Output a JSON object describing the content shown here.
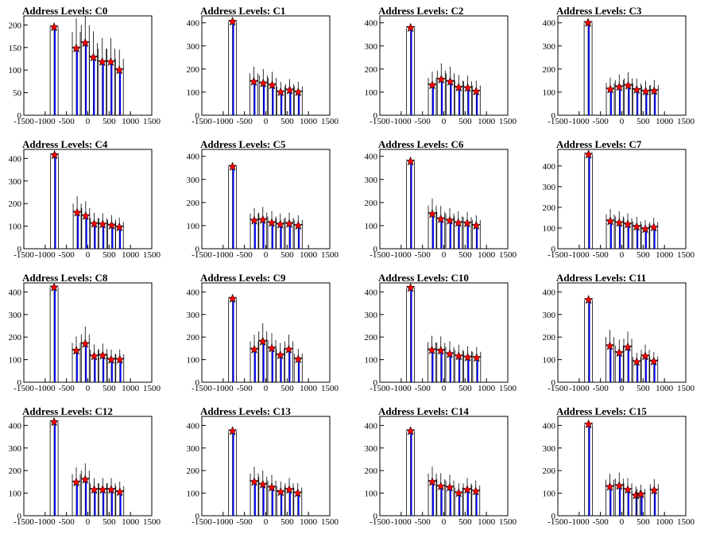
{
  "chart_data": [
    {
      "type": "histogram",
      "title": "Address Levels: C0",
      "xlim": [
        -1500,
        1500
      ],
      "ylim": [
        0,
        220
      ],
      "xticks": [
        -1500,
        -1000,
        -500,
        0,
        500,
        1000,
        1500
      ],
      "yticks": [
        0,
        50,
        100,
        150,
        200
      ],
      "peaks": [
        {
          "x": -790,
          "y": 195
        },
        {
          "x": -270,
          "y": 148
        },
        {
          "x": -60,
          "y": 160
        },
        {
          "x": 130,
          "y": 128
        },
        {
          "x": 340,
          "y": 118
        },
        {
          "x": 540,
          "y": 118
        },
        {
          "x": 740,
          "y": 100
        }
      ]
    },
    {
      "type": "histogram",
      "title": "Address Levels: C1",
      "xlim": [
        -1500,
        1500
      ],
      "ylim": [
        0,
        430
      ],
      "xticks": [
        -1500,
        -1000,
        -500,
        0,
        500,
        1000,
        1500
      ],
      "yticks": [
        0,
        100,
        200,
        300,
        400
      ],
      "peaks": [
        {
          "x": -780,
          "y": 405
        },
        {
          "x": -280,
          "y": 145
        },
        {
          "x": -60,
          "y": 138
        },
        {
          "x": 150,
          "y": 130
        },
        {
          "x": 350,
          "y": 100
        },
        {
          "x": 560,
          "y": 108
        },
        {
          "x": 760,
          "y": 100
        }
      ]
    },
    {
      "type": "histogram",
      "title": "Address Levels: C2",
      "xlim": [
        -1500,
        1500
      ],
      "ylim": [
        0,
        430
      ],
      "xticks": [
        -1500,
        -1000,
        -500,
        0,
        500,
        1000,
        1500
      ],
      "yticks": [
        0,
        100,
        200,
        300,
        400
      ],
      "peaks": [
        {
          "x": -780,
          "y": 378
        },
        {
          "x": -270,
          "y": 130
        },
        {
          "x": -60,
          "y": 155
        },
        {
          "x": 150,
          "y": 145
        },
        {
          "x": 350,
          "y": 120
        },
        {
          "x": 560,
          "y": 118
        },
        {
          "x": 760,
          "y": 103
        }
      ]
    },
    {
      "type": "histogram",
      "title": "Address Levels: C3",
      "xlim": [
        -1500,
        1500
      ],
      "ylim": [
        0,
        430
      ],
      "xticks": [
        -1500,
        -1000,
        -500,
        0,
        500,
        1000,
        1500
      ],
      "yticks": [
        0,
        100,
        200,
        300,
        400
      ],
      "peaks": [
        {
          "x": -790,
          "y": 400
        },
        {
          "x": -270,
          "y": 112
        },
        {
          "x": -60,
          "y": 122
        },
        {
          "x": 150,
          "y": 128
        },
        {
          "x": 350,
          "y": 110
        },
        {
          "x": 560,
          "y": 103
        },
        {
          "x": 760,
          "y": 105
        }
      ]
    },
    {
      "type": "histogram",
      "title": "Address Levels: C4",
      "xlim": [
        -1500,
        1500
      ],
      "ylim": [
        0,
        440
      ],
      "xticks": [
        -1500,
        -1000,
        -500,
        0,
        500,
        1000,
        1500
      ],
      "yticks": [
        0,
        100,
        200,
        300,
        400
      ],
      "peaks": [
        {
          "x": -780,
          "y": 415
        },
        {
          "x": -250,
          "y": 160
        },
        {
          "x": -50,
          "y": 145
        },
        {
          "x": 150,
          "y": 110
        },
        {
          "x": 350,
          "y": 108
        },
        {
          "x": 560,
          "y": 103
        },
        {
          "x": 740,
          "y": 95
        }
      ]
    },
    {
      "type": "histogram",
      "title": "Address Levels: C5",
      "xlim": [
        -1500,
        1500
      ],
      "ylim": [
        0,
        430
      ],
      "xticks": [
        -1500,
        -1000,
        -500,
        0,
        500,
        1000,
        1500
      ],
      "yticks": [
        0,
        100,
        200,
        300,
        400
      ],
      "peaks": [
        {
          "x": -780,
          "y": 355
        },
        {
          "x": -270,
          "y": 122
        },
        {
          "x": -70,
          "y": 125
        },
        {
          "x": 140,
          "y": 112
        },
        {
          "x": 340,
          "y": 105
        },
        {
          "x": 550,
          "y": 108
        },
        {
          "x": 760,
          "y": 100
        }
      ]
    },
    {
      "type": "histogram",
      "title": "Address Levels: C6",
      "xlim": [
        -1500,
        1500
      ],
      "ylim": [
        0,
        430
      ],
      "xticks": [
        -1500,
        -1000,
        -500,
        0,
        500,
        1000,
        1500
      ],
      "yticks": [
        0,
        100,
        200,
        300,
        400
      ],
      "peaks": [
        {
          "x": -780,
          "y": 378
        },
        {
          "x": -270,
          "y": 150
        },
        {
          "x": -70,
          "y": 128
        },
        {
          "x": 140,
          "y": 122
        },
        {
          "x": 340,
          "y": 112
        },
        {
          "x": 550,
          "y": 110
        },
        {
          "x": 760,
          "y": 100
        }
      ]
    },
    {
      "type": "histogram",
      "title": "Address Levels: C7",
      "xlim": [
        -1500,
        1500
      ],
      "ylim": [
        0,
        480
      ],
      "xticks": [
        -1500,
        -1000,
        -500,
        0,
        500,
        1000,
        1500
      ],
      "yticks": [
        0,
        100,
        200,
        300,
        400
      ],
      "peaks": [
        {
          "x": -780,
          "y": 455
        },
        {
          "x": -270,
          "y": 133
        },
        {
          "x": -60,
          "y": 125
        },
        {
          "x": 140,
          "y": 118
        },
        {
          "x": 350,
          "y": 106
        },
        {
          "x": 550,
          "y": 95
        },
        {
          "x": 750,
          "y": 103
        }
      ]
    },
    {
      "type": "histogram",
      "title": "Address Levels: C8",
      "xlim": [
        -1500,
        1500
      ],
      "ylim": [
        0,
        440
      ],
      "xticks": [
        -1500,
        -1000,
        -500,
        0,
        500,
        1000,
        1500
      ],
      "yticks": [
        0,
        100,
        200,
        300,
        400
      ],
      "peaks": [
        {
          "x": -790,
          "y": 420
        },
        {
          "x": -270,
          "y": 140
        },
        {
          "x": -60,
          "y": 170
        },
        {
          "x": 150,
          "y": 115
        },
        {
          "x": 350,
          "y": 118
        },
        {
          "x": 550,
          "y": 100
        },
        {
          "x": 750,
          "y": 100
        }
      ]
    },
    {
      "type": "histogram",
      "title": "Address Levels: C9",
      "xlim": [
        -1500,
        1500
      ],
      "ylim": [
        0,
        440
      ],
      "xticks": [
        -1500,
        -1000,
        -500,
        0,
        500,
        1000,
        1500
      ],
      "yticks": [
        0,
        100,
        200,
        300,
        400
      ],
      "peaks": [
        {
          "x": -780,
          "y": 370
        },
        {
          "x": -270,
          "y": 145
        },
        {
          "x": -70,
          "y": 180
        },
        {
          "x": 140,
          "y": 150
        },
        {
          "x": 340,
          "y": 120
        },
        {
          "x": 540,
          "y": 145
        },
        {
          "x": 760,
          "y": 102
        }
      ]
    },
    {
      "type": "histogram",
      "title": "Address Levels: C10",
      "xlim": [
        -1500,
        1500
      ],
      "ylim": [
        0,
        440
      ],
      "xticks": [
        -1500,
        -1000,
        -500,
        0,
        500,
        1000,
        1500
      ],
      "yticks": [
        0,
        100,
        200,
        300,
        400
      ],
      "peaks": [
        {
          "x": -780,
          "y": 418
        },
        {
          "x": -280,
          "y": 142
        },
        {
          "x": -70,
          "y": 140
        },
        {
          "x": 140,
          "y": 125
        },
        {
          "x": 350,
          "y": 115
        },
        {
          "x": 560,
          "y": 110
        },
        {
          "x": 770,
          "y": 108
        }
      ]
    },
    {
      "type": "histogram",
      "title": "Address Levels: C11",
      "xlim": [
        -1500,
        1500
      ],
      "ylim": [
        0,
        440
      ],
      "xticks": [
        -1500,
        -1000,
        -500,
        0,
        500,
        1000,
        1500
      ],
      "yticks": [
        0,
        100,
        200,
        300,
        400
      ],
      "peaks": [
        {
          "x": -780,
          "y": 365
        },
        {
          "x": -280,
          "y": 160
        },
        {
          "x": -60,
          "y": 130
        },
        {
          "x": 140,
          "y": 155
        },
        {
          "x": 350,
          "y": 90
        },
        {
          "x": 550,
          "y": 115
        },
        {
          "x": 750,
          "y": 92
        }
      ]
    },
    {
      "type": "histogram",
      "title": "Address Levels: C12",
      "xlim": [
        -1500,
        1500
      ],
      "ylim": [
        0,
        440
      ],
      "xticks": [
        -1500,
        -1000,
        -500,
        0,
        500,
        1000,
        1500
      ],
      "yticks": [
        0,
        100,
        200,
        300,
        400
      ],
      "peaks": [
        {
          "x": -790,
          "y": 415
        },
        {
          "x": -270,
          "y": 148
        },
        {
          "x": -60,
          "y": 160
        },
        {
          "x": 150,
          "y": 115
        },
        {
          "x": 350,
          "y": 115
        },
        {
          "x": 550,
          "y": 115
        },
        {
          "x": 750,
          "y": 105
        }
      ]
    },
    {
      "type": "histogram",
      "title": "Address Levels: C13",
      "xlim": [
        -1500,
        1500
      ],
      "ylim": [
        0,
        440
      ],
      "xticks": [
        -1500,
        -1000,
        -500,
        0,
        500,
        1000,
        1500
      ],
      "yticks": [
        0,
        100,
        200,
        300,
        400
      ],
      "peaks": [
        {
          "x": -780,
          "y": 375
        },
        {
          "x": -270,
          "y": 150
        },
        {
          "x": -70,
          "y": 138
        },
        {
          "x": 140,
          "y": 125
        },
        {
          "x": 350,
          "y": 105
        },
        {
          "x": 550,
          "y": 115
        },
        {
          "x": 750,
          "y": 100
        }
      ]
    },
    {
      "type": "histogram",
      "title": "Address Levels: C14",
      "xlim": [
        -1500,
        1500
      ],
      "ylim": [
        0,
        440
      ],
      "xticks": [
        -1500,
        -1000,
        -500,
        0,
        500,
        1000,
        1500
      ],
      "yticks": [
        0,
        100,
        200,
        300,
        400
      ],
      "peaks": [
        {
          "x": -780,
          "y": 375
        },
        {
          "x": -270,
          "y": 150
        },
        {
          "x": -70,
          "y": 130
        },
        {
          "x": 140,
          "y": 125
        },
        {
          "x": 350,
          "y": 100
        },
        {
          "x": 550,
          "y": 115
        },
        {
          "x": 750,
          "y": 108
        }
      ]
    },
    {
      "type": "histogram",
      "title": "Address Levels: C15",
      "xlim": [
        -1500,
        1500
      ],
      "ylim": [
        0,
        440
      ],
      "xticks": [
        -1500,
        -1000,
        -500,
        0,
        500,
        1000,
        1500
      ],
      "yticks": [
        0,
        100,
        200,
        300,
        400
      ],
      "peaks": [
        {
          "x": -780,
          "y": 405
        },
        {
          "x": -280,
          "y": 128
        },
        {
          "x": -60,
          "y": 132
        },
        {
          "x": 140,
          "y": 115
        },
        {
          "x": 330,
          "y": 90
        },
        {
          "x": 450,
          "y": 95
        },
        {
          "x": 760,
          "y": 112
        }
      ]
    }
  ]
}
